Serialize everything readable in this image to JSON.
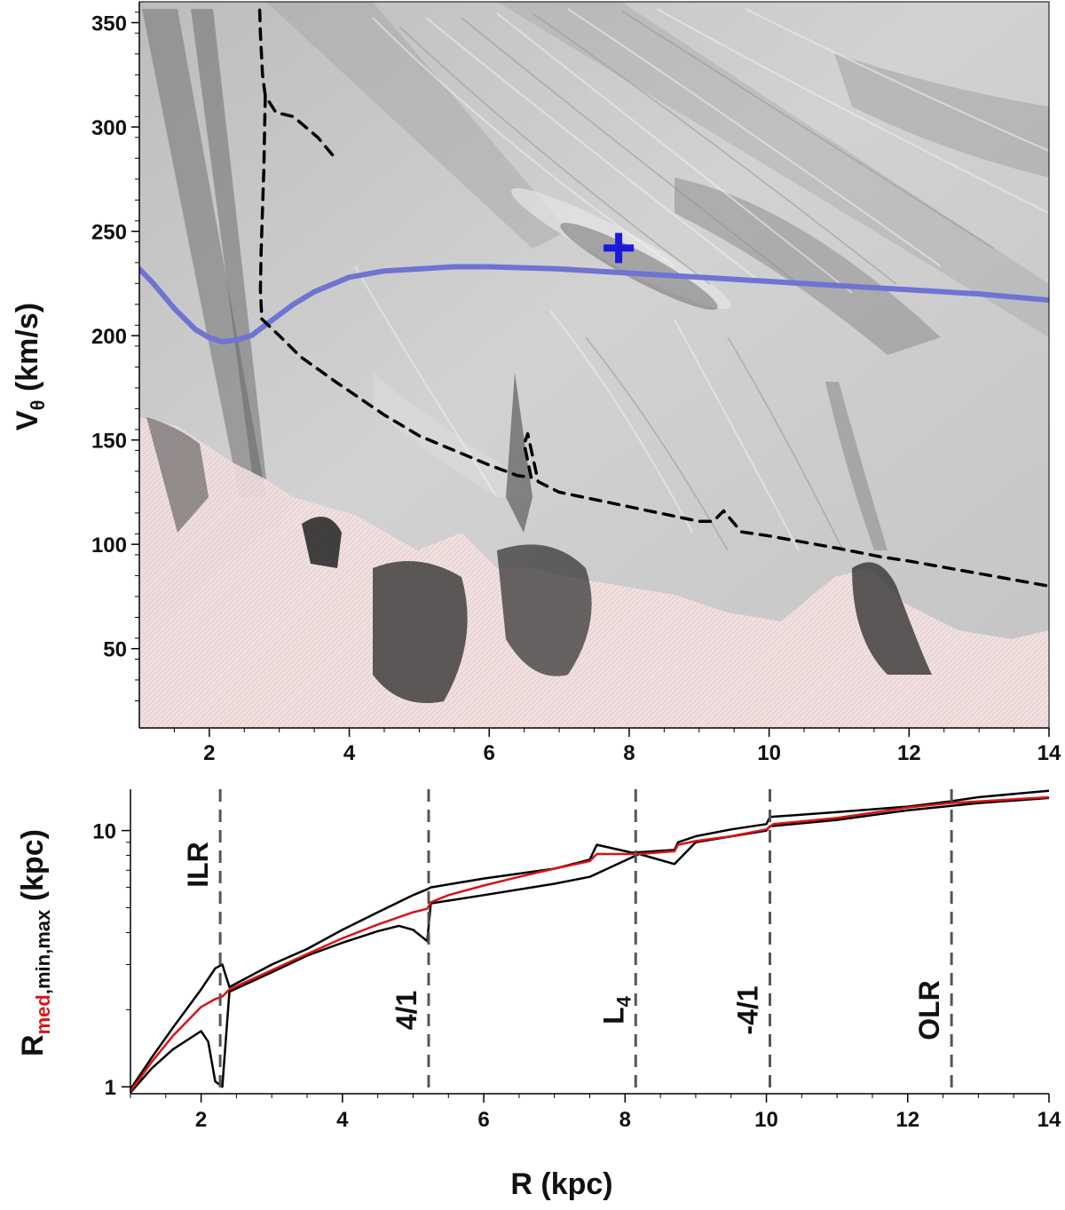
{
  "chart_data": [
    {
      "type": "line",
      "panel": "top",
      "ylabel_main": "V",
      "ylabel_sub": "θ",
      "ylabel_unit": " (km/s)",
      "xlim": [
        1,
        14
      ],
      "ylim": [
        12,
        360
      ],
      "x_ticks": [
        2,
        4,
        6,
        8,
        10,
        12,
        14
      ],
      "x_tick_labels": [
        "2",
        "4",
        "6",
        "8",
        "10",
        "12",
        "14"
      ],
      "y_ticks": [
        50,
        100,
        150,
        200,
        250,
        300,
        350
      ],
      "y_tick_labels": [
        "50",
        "100",
        "150",
        "200",
        "250",
        "300",
        "350"
      ],
      "series": [
        {
          "style": "solid",
          "color": "#6f73d2",
          "x": [
            1.0,
            1.2,
            1.5,
            1.8,
            2.0,
            2.2,
            2.4,
            2.6,
            2.8,
            3.0,
            3.2,
            3.5,
            4.0,
            4.5,
            5.0,
            5.5,
            6.0,
            7.0,
            8.0,
            9.0,
            10.0,
            11.0,
            12.0,
            13.0,
            14.0
          ],
          "y": [
            232,
            225,
            213,
            203,
            199,
            197,
            198,
            200,
            205,
            210,
            215,
            221,
            228,
            231,
            232,
            233,
            233,
            232,
            230,
            228,
            226,
            224,
            222,
            220,
            217
          ]
        },
        {
          "style": "dashed",
          "color": "#000000",
          "x": [
            2.72,
            2.73,
            2.76,
            2.8,
            2.95,
            3.2,
            3.55,
            3.8
          ],
          "y": [
            356,
            345,
            325,
            315,
            307,
            305,
            295,
            285
          ]
        },
        {
          "style": "dashed",
          "color": "#000000",
          "x": [
            2.8,
            2.78,
            2.74,
            2.73,
            2.75
          ],
          "y": [
            315,
            280,
            240,
            222,
            208
          ]
        },
        {
          "style": "dashed",
          "color": "#000000",
          "x": [
            2.75,
            3.0,
            3.3,
            3.8,
            4.5,
            5.0,
            5.5,
            6.0,
            6.4,
            6.6,
            6.5,
            6.55,
            6.7,
            7.0,
            8.0,
            9.0,
            9.2,
            9.35,
            9.6,
            10.0,
            11.0,
            11.6,
            12.0,
            13.0,
            14.0
          ],
          "y": [
            208,
            200,
            190,
            178,
            162,
            152,
            145,
            138,
            133,
            132,
            148,
            153,
            130,
            125,
            118,
            111,
            111,
            116,
            106,
            104,
            98,
            94,
            92,
            86,
            80
          ]
        }
      ],
      "markers": [
        {
          "shape": "plus",
          "color": "#1a1adc",
          "x": 7.85,
          "y": 242
        }
      ]
    },
    {
      "type": "line",
      "panel": "bottom",
      "xlabel": "R (kpc)",
      "ylabel_r": "R",
      "ylabel_med": "med",
      "ylabel_minmax": ",min,max",
      "ylabel_unit": " (kpc)",
      "y_scale": "log",
      "xlim": [
        1,
        14
      ],
      "ylim": [
        0.94,
        14.5
      ],
      "x_ticks": [
        2,
        4,
        6,
        8,
        10,
        12,
        14
      ],
      "x_tick_labels": [
        "2",
        "4",
        "6",
        "8",
        "10",
        "12",
        "14"
      ],
      "y_ticks": [
        1,
        10
      ],
      "y_tick_labels": [
        "1",
        "10"
      ],
      "series": [
        {
          "role": "median",
          "color": "#d91414",
          "x": [
            1.0,
            1.3,
            1.6,
            2.0,
            2.2,
            2.3,
            2.4,
            3.0,
            3.5,
            4.0,
            4.5,
            5.0,
            5.2,
            5.25,
            5.5,
            6.0,
            6.5,
            7.0,
            7.5,
            7.6,
            8.0,
            8.2,
            8.7,
            8.75,
            9.0,
            9.5,
            10.0,
            10.1,
            11.0,
            12.0,
            12.6,
            13.0,
            14.0
          ],
          "y": [
            0.96,
            1.25,
            1.58,
            2.05,
            2.2,
            2.25,
            2.4,
            2.85,
            3.3,
            3.8,
            4.3,
            4.8,
            4.95,
            5.25,
            5.6,
            6.1,
            6.6,
            7.1,
            7.6,
            8.1,
            8.1,
            8.1,
            8.3,
            8.8,
            9.1,
            9.5,
            10.1,
            10.6,
            11.2,
            12.3,
            12.8,
            13.0,
            13.5
          ]
        },
        {
          "role": "max",
          "color": "#000000",
          "x": [
            1.0,
            1.3,
            1.6,
            2.0,
            2.2,
            2.3,
            2.4,
            3.0,
            3.5,
            4.0,
            4.5,
            5.0,
            5.2,
            5.25,
            6.0,
            7.0,
            7.5,
            7.6,
            8.1,
            8.7,
            8.75,
            9.0,
            9.5,
            10.0,
            10.05,
            11.0,
            12.0,
            12.6,
            13.0,
            14.0
          ],
          "y": [
            0.98,
            1.3,
            1.7,
            2.4,
            2.9,
            3.0,
            2.45,
            3.0,
            3.45,
            4.1,
            4.8,
            5.6,
            5.9,
            6.0,
            6.5,
            7.1,
            7.7,
            8.8,
            8.2,
            8.4,
            9.0,
            9.5,
            10.1,
            10.6,
            11.3,
            11.8,
            12.4,
            13.0,
            13.5,
            14.3
          ]
        },
        {
          "role": "min",
          "color": "#000000",
          "x": [
            1.0,
            1.3,
            1.6,
            2.0,
            2.1,
            2.2,
            2.3,
            2.4,
            3.0,
            3.5,
            4.0,
            4.5,
            4.8,
            5.0,
            5.2,
            5.25,
            6.0,
            7.0,
            7.5,
            8.2,
            8.7,
            9.0,
            10.0,
            10.05,
            11.0,
            12.0,
            13.0,
            14.0
          ],
          "y": [
            0.95,
            1.18,
            1.4,
            1.65,
            1.5,
            1.05,
            1.0,
            2.35,
            2.8,
            3.25,
            3.65,
            4.05,
            4.25,
            4.1,
            3.7,
            5.2,
            5.6,
            6.2,
            6.6,
            8.1,
            7.4,
            9.0,
            10.0,
            10.4,
            11.0,
            12.0,
            12.8,
            13.4
          ]
        }
      ],
      "resonances": [
        {
          "label": "ILR",
          "x": 2.27,
          "placement": "left-top"
        },
        {
          "label": "4/1",
          "x": 5.22,
          "placement": "left-bottom"
        },
        {
          "label": "L",
          "sub": "4",
          "x": 8.15,
          "placement": "left-bottom"
        },
        {
          "label": "-4/1",
          "x": 10.05,
          "placement": "left-bottom"
        },
        {
          "label": "OLR",
          "x": 12.62,
          "placement": "left-bottom"
        }
      ]
    }
  ]
}
